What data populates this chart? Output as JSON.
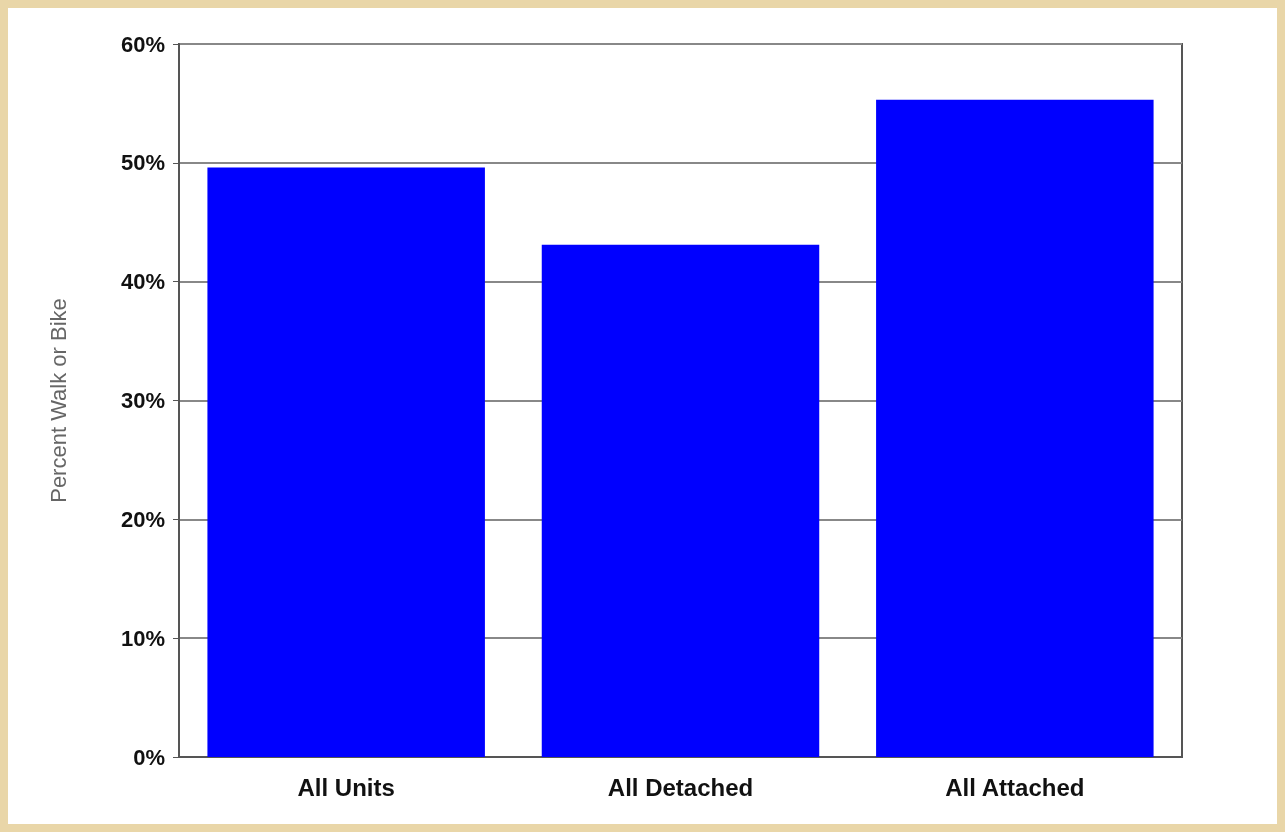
{
  "chart_data": {
    "type": "bar",
    "ylabel": "Percent Walk or Bike",
    "categories": [
      "All Units",
      "All Detached",
      "All Attached"
    ],
    "values": [
      49.6,
      43.1,
      55.3
    ],
    "color": "#0000ff",
    "ylim": [
      0,
      60
    ],
    "yticks": [
      {
        "value": 0,
        "label": "0%"
      },
      {
        "value": 10,
        "label": "10%"
      },
      {
        "value": 20,
        "label": "20%"
      },
      {
        "value": 30,
        "label": "30%"
      },
      {
        "value": 40,
        "label": "40%"
      },
      {
        "value": 50,
        "label": "50%"
      },
      {
        "value": 60,
        "label": "60%"
      }
    ],
    "grid": "y"
  }
}
